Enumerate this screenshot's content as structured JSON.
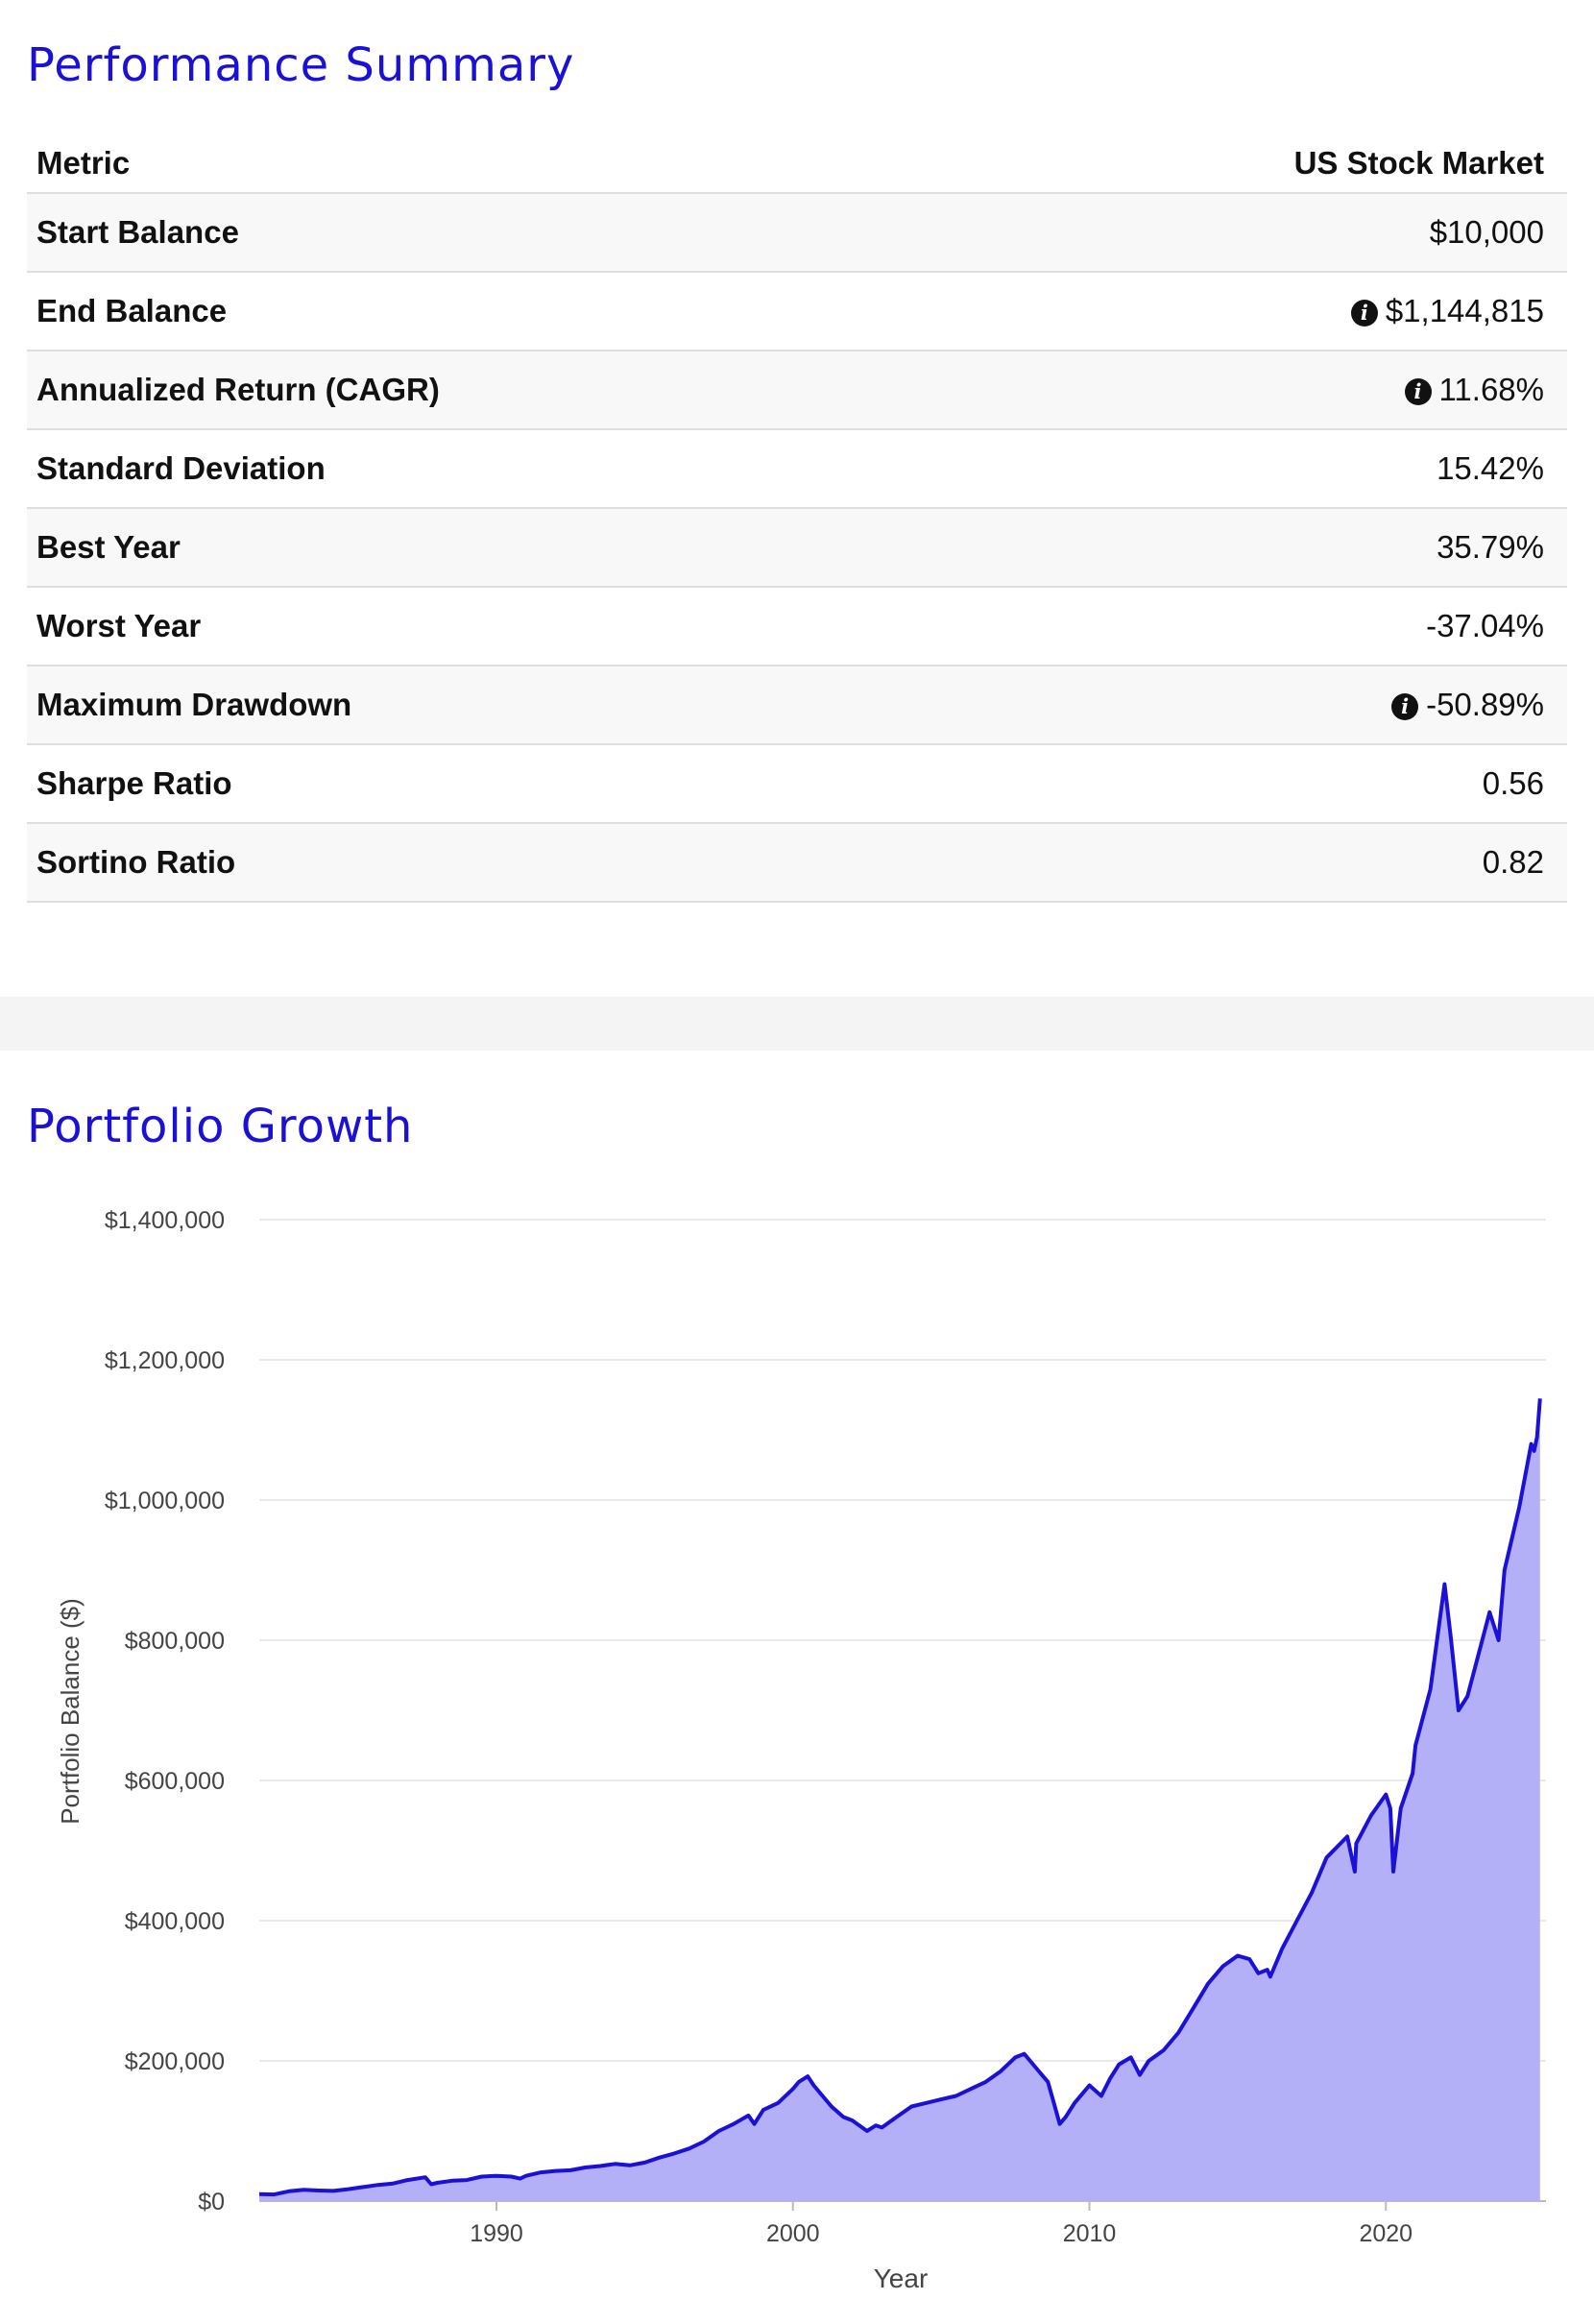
{
  "performance": {
    "title": "Performance Summary",
    "columns": [
      "Metric",
      "US Stock Market"
    ],
    "rows": [
      {
        "label": "Start Balance",
        "value": "$10,000",
        "info": false
      },
      {
        "label": "End Balance",
        "value": "$1,144,815",
        "info": true
      },
      {
        "label": "Annualized Return (CAGR)",
        "value": "11.68%",
        "info": true
      },
      {
        "label": "Standard Deviation",
        "value": "15.42%",
        "info": false
      },
      {
        "label": "Best Year",
        "value": "35.79%",
        "info": false
      },
      {
        "label": "Worst Year",
        "value": "-37.04%",
        "info": false
      },
      {
        "label": "Maximum Drawdown",
        "value": "-50.89%",
        "info": true
      },
      {
        "label": "Sharpe Ratio",
        "value": "0.56",
        "info": false
      },
      {
        "label": "Sortino Ratio",
        "value": "0.82",
        "info": false
      }
    ]
  },
  "growth": {
    "title": "Portfolio Growth"
  },
  "chart_data": {
    "type": "area",
    "xlabel": "Year",
    "ylabel": "Portfolio Balance ($)",
    "xlim": [
      1982,
      2025.4
    ],
    "ylim": [
      0,
      1400000
    ],
    "xticks": [
      1990,
      2000,
      2010,
      2020
    ],
    "yticks": [
      0,
      200000,
      400000,
      600000,
      800000,
      1000000,
      1200000,
      1400000
    ],
    "ytick_labels": [
      "$0",
      "$200,000",
      "$400,000",
      "$600,000",
      "$800,000",
      "$1,000,000",
      "$1,200,000",
      "$1,400,000"
    ],
    "grid": "horizontal",
    "line_color": "#1a10d8",
    "fill_color": "#b3b0f7",
    "series": [
      {
        "x": [
          1982.0,
          1982.5,
          1983.0,
          1983.5,
          1984.0,
          1984.5,
          1985.0,
          1985.5,
          1986.0,
          1986.5,
          1987.0,
          1987.6,
          1987.8,
          1988.0,
          1988.5,
          1989.0,
          1989.5,
          1990.0,
          1990.5,
          1990.8,
          1991.0,
          1991.5,
          1992.0,
          1992.5,
          1993.0,
          1993.5,
          1994.0,
          1994.5,
          1995.0,
          1995.5,
          1996.0,
          1996.5,
          1997.0,
          1997.5,
          1998.0,
          1998.5,
          1998.7,
          1999.0,
          1999.5,
          2000.0,
          2000.2,
          2000.5,
          2000.7,
          2001.0,
          2001.3,
          2001.7,
          2002.0,
          2002.5,
          2002.8,
          2003.0,
          2003.5,
          2004.0,
          2004.5,
          2005.0,
          2005.5,
          2006.0,
          2006.5,
          2007.0,
          2007.5,
          2007.8,
          2008.0,
          2008.3,
          2008.6,
          2008.8,
          2009.0,
          2009.2,
          2009.5,
          2010.0,
          2010.4,
          2010.7,
          2011.0,
          2011.4,
          2011.7,
          2012.0,
          2012.5,
          2013.0,
          2013.5,
          2014.0,
          2014.5,
          2015.0,
          2015.4,
          2015.7,
          2016.0,
          2016.1,
          2016.5,
          2017.0,
          2017.5,
          2018.0,
          2018.7,
          2018.95,
          2019.0,
          2019.5,
          2020.0,
          2020.15,
          2020.25,
          2020.5,
          2020.9,
          2021.0,
          2021.5,
          2021.98,
          2022.2,
          2022.45,
          2022.75,
          2023.0,
          2023.5,
          2023.8,
          2024.0,
          2024.5,
          2024.9,
          2025.0,
          2025.1,
          2025.2
        ],
        "y": [
          10000,
          9500,
          14000,
          16000,
          15000,
          14500,
          17000,
          20000,
          23000,
          25000,
          30000,
          34000,
          24000,
          26000,
          29000,
          30000,
          35000,
          36000,
          35000,
          32000,
          36000,
          41000,
          43000,
          44000,
          48000,
          50000,
          53000,
          51000,
          55000,
          62000,
          68000,
          75000,
          85000,
          100000,
          110000,
          122000,
          110000,
          130000,
          140000,
          160000,
          170000,
          178000,
          165000,
          150000,
          135000,
          120000,
          115000,
          100000,
          108000,
          105000,
          120000,
          135000,
          140000,
          145000,
          150000,
          160000,
          170000,
          185000,
          205000,
          210000,
          200000,
          185000,
          170000,
          140000,
          110000,
          120000,
          140000,
          165000,
          150000,
          175000,
          195000,
          205000,
          180000,
          200000,
          215000,
          240000,
          275000,
          310000,
          335000,
          350000,
          345000,
          325000,
          330000,
          320000,
          360000,
          400000,
          440000,
          490000,
          520000,
          470000,
          510000,
          550000,
          580000,
          560000,
          470000,
          560000,
          610000,
          650000,
          730000,
          880000,
          800000,
          700000,
          720000,
          760000,
          840000,
          800000,
          900000,
          990000,
          1080000,
          1070000,
          1090000,
          1144815
        ]
      }
    ]
  }
}
